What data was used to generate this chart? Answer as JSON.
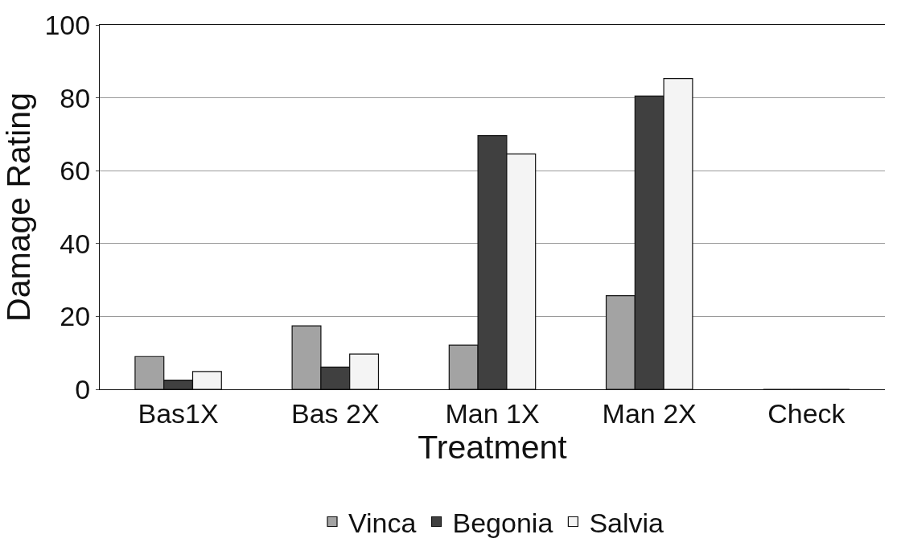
{
  "chart_data": {
    "type": "bar",
    "xlabel": "Treatment",
    "ylabel": "Damage Rating",
    "categories": [
      "Bas1X",
      "Bas 2X",
      "Man 1X",
      "Man 2X",
      "Check"
    ],
    "series": [
      {
        "name": "Vinca",
        "color": "#a3a3a3",
        "values": [
          9,
          17.4,
          12.1,
          25.7,
          0
        ]
      },
      {
        "name": "Begonia",
        "color": "#404040",
        "values": [
          2.5,
          6.1,
          69.6,
          80.5,
          0
        ]
      },
      {
        "name": "Salvia",
        "color": "#f4f4f4",
        "values": [
          4.9,
          9.7,
          64.6,
          85.3,
          0
        ]
      }
    ],
    "ylim": [
      0,
      100
    ],
    "yticks": [
      0,
      20,
      40,
      60,
      80,
      100
    ],
    "grid": "y",
    "legend": "bottom"
  }
}
